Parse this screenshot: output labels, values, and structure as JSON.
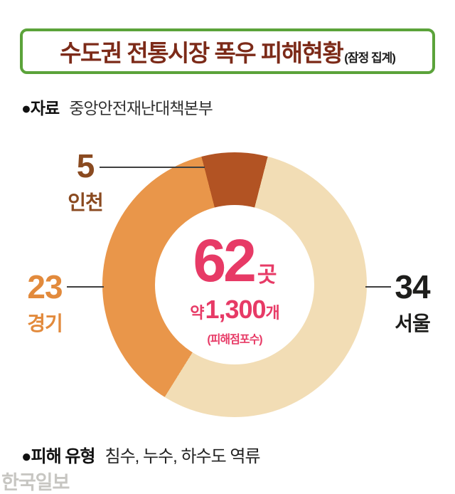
{
  "header": {
    "title": "수도권 전통시장 폭우 피해현황",
    "subtitle": "(잠정 집계)"
  },
  "source": {
    "label": "●자료",
    "value": "중앙안전재난대책본부"
  },
  "chart_data": {
    "type": "pie",
    "title": "수도권 전통시장 폭우 피해현황 (잠정 집계)",
    "unit": "곳",
    "total": 62,
    "categories": [
      "서울",
      "경기",
      "인천"
    ],
    "values": [
      34,
      23,
      5
    ],
    "colors": [
      "#f2ddb5",
      "#e9964a",
      "#b25323"
    ],
    "draw_order": [
      2,
      0,
      1
    ],
    "hole_ratio": 0.6,
    "legend_position": "around",
    "center_label": {
      "value": "62",
      "unit": "곳",
      "approx_prefix": "약",
      "stores_value": "1,300",
      "stores_unit": "개",
      "caption": "(피해점포수)"
    },
    "callouts": [
      {
        "value": "34",
        "name": "서울",
        "color": "#1e1e1c"
      },
      {
        "value": "23",
        "name": "경기",
        "color": "#e28a3c"
      },
      {
        "value": "5",
        "name": "인천",
        "color": "#8a4a20"
      }
    ]
  },
  "footer": {
    "label": "●피해 유형",
    "value": "침수, 누수, 하수도 역류"
  },
  "watermark": "한국일보",
  "theme": {
    "title_color": "#7c2a18",
    "box_border_color": "#5ba33a",
    "accent_pink": "#e73a66"
  }
}
